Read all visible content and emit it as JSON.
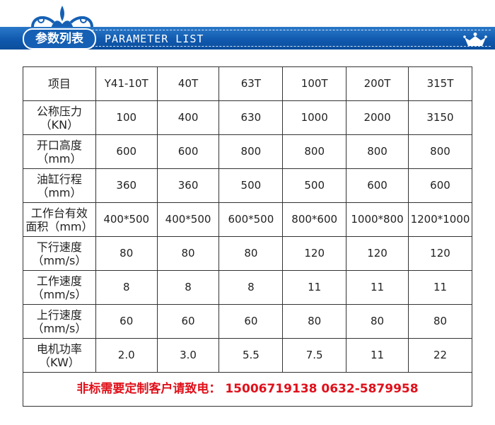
{
  "header": {
    "title_cn": "参数列表",
    "title_en": "PARAMETER LIST",
    "crown_icon": "crown-icon",
    "color": "#1560b4"
  },
  "table": {
    "headers": [
      "项目",
      "Y41-10T",
      "40T",
      "63T",
      "100T",
      "200T",
      "315T"
    ],
    "rows": [
      {
        "label": "公称压力",
        "unit": "（KN）",
        "values": [
          "100",
          "400",
          "630",
          "1000",
          "2000",
          "3150"
        ]
      },
      {
        "label": "开口高度",
        "unit": "（mm）",
        "values": [
          "600",
          "600",
          "800",
          "800",
          "800",
          "800"
        ]
      },
      {
        "label": "油缸行程",
        "unit": "（mm）",
        "values": [
          "360",
          "360",
          "500",
          "500",
          "600",
          "600"
        ]
      },
      {
        "label": "工作台有效",
        "unit": "面积（mm）",
        "values": [
          "400*500",
          "400*500",
          "600*500",
          "800*600",
          "1000*800",
          "1200*1000"
        ]
      },
      {
        "label": "下行速度",
        "unit": "（mm/s）",
        "values": [
          "80",
          "80",
          "80",
          "120",
          "120",
          "120"
        ]
      },
      {
        "label": "工作速度",
        "unit": "（mm/s）",
        "values": [
          "8",
          "8",
          "8",
          "11",
          "11",
          "11"
        ]
      },
      {
        "label": "上行速度",
        "unit": "（mm/s）",
        "values": [
          "60",
          "60",
          "60",
          "80",
          "80",
          "80"
        ]
      },
      {
        "label": "电机功率",
        "unit": "（KW）",
        "values": [
          "2.0",
          "3.0",
          "5.5",
          "7.5",
          "11",
          "22"
        ]
      }
    ],
    "footer": "非标需要定制客户请致电： 15006719138  0632-5879958",
    "footer_color": "#e0101a"
  }
}
